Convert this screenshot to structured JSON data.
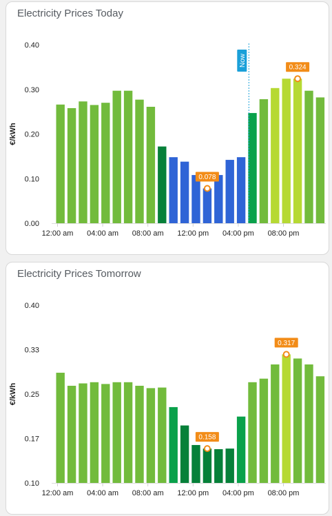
{
  "cards": [
    {
      "title": "Electricity Prices Today",
      "chart_data": {
        "type": "bar",
        "title": "Electricity Prices Today",
        "ylabel": "€/kWh",
        "ylim": [
          0,
          0.4
        ],
        "y_ticks": [
          "0.00",
          "0.10",
          "0.20",
          "0.30",
          "0.40"
        ],
        "x_ticks": [
          "12:00 am",
          "04:00 am",
          "08:00 am",
          "12:00 pm",
          "04:00 pm",
          "08:00 pm"
        ],
        "values": [
          0.266,
          0.258,
          0.273,
          0.265,
          0.27,
          0.297,
          0.297,
          0.277,
          0.261,
          0.172,
          0.148,
          0.138,
          0.108,
          0.078,
          0.108,
          0.142,
          0.148,
          0.247,
          0.278,
          0.303,
          0.324,
          0.324,
          0.297,
          0.282
        ],
        "colors": [
          "#72bb3c",
          "#72bb3c",
          "#72bb3c",
          "#72bb3c",
          "#72bb3c",
          "#72bb3c",
          "#72bb3c",
          "#72bb3c",
          "#72bb3c",
          "#068039",
          "#2f64d6",
          "#2f64d6",
          "#2f64d6",
          "#2f64d6",
          "#2f64d6",
          "#2f64d6",
          "#2f64d6",
          "#0aa14b",
          "#72bb3c",
          "#b6d933",
          "#b6d933",
          "#b6d933",
          "#72bb3c",
          "#72bb3c"
        ],
        "annotations": [
          {
            "label": "0.078",
            "index": 13,
            "value": 0.078
          },
          {
            "label": "0.324",
            "index": 21,
            "value": 0.324
          }
        ],
        "now_label": "Now",
        "now_hour": 17
      }
    },
    {
      "title": "Electricity Prices Tomorrow",
      "chart_data": {
        "type": "bar",
        "title": "Electricity Prices Tomorrow",
        "ylabel": "€/kWh",
        "ylim": [
          0.1,
          0.4
        ],
        "y_ticks": [
          "0.10",
          "0.17",
          "0.25",
          "0.33",
          "0.40"
        ],
        "x_ticks": [
          "12:00 am",
          "04:00 am",
          "08:00 am",
          "12:00 pm",
          "04:00 pm",
          "08:00 pm"
        ],
        "values": [
          0.286,
          0.264,
          0.268,
          0.27,
          0.267,
          0.27,
          0.27,
          0.264,
          0.26,
          0.261,
          0.228,
          0.197,
          0.164,
          0.158,
          0.157,
          0.158,
          0.212,
          0.27,
          0.276,
          0.3,
          0.317,
          0.31,
          0.3,
          0.28
        ],
        "colors": [
          "#72bb3c",
          "#72bb3c",
          "#72bb3c",
          "#72bb3c",
          "#72bb3c",
          "#72bb3c",
          "#72bb3c",
          "#72bb3c",
          "#72bb3c",
          "#72bb3c",
          "#0aa14b",
          "#068039",
          "#068039",
          "#068039",
          "#068039",
          "#068039",
          "#0aa14b",
          "#72bb3c",
          "#72bb3c",
          "#72bb3c",
          "#b6d933",
          "#72bb3c",
          "#72bb3c",
          "#72bb3c"
        ],
        "annotations": [
          {
            "label": "0.158",
            "index": 13,
            "value": 0.158
          },
          {
            "label": "0.317",
            "index": 20,
            "value": 0.317
          }
        ]
      }
    }
  ],
  "colors": {
    "annotation_bg": "#f28c18",
    "annotation_text": "#ffffff",
    "now_bg": "#1aa0d9",
    "title_text": "#555a60"
  }
}
